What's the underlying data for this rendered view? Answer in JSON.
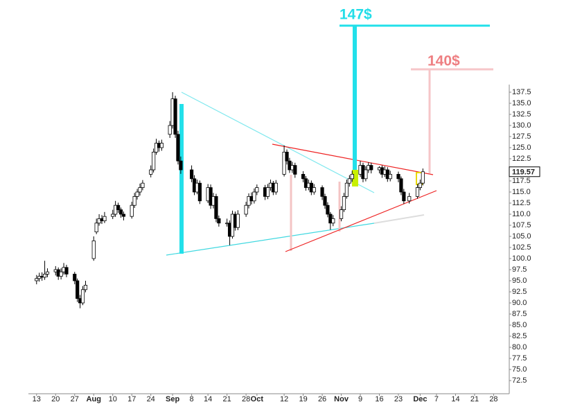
{
  "chart_data": {
    "type": "candlestick",
    "annotations": {
      "target_high": "147$",
      "target_low": "140$"
    },
    "x": [
      0,
      1,
      2,
      3,
      4,
      7,
      8,
      9,
      10,
      11,
      14,
      15,
      16,
      17,
      18,
      21,
      22,
      23,
      24,
      25,
      28,
      29,
      30,
      31,
      32,
      35,
      36,
      37,
      38,
      39,
      42,
      43,
      44,
      45,
      46,
      49,
      50,
      51,
      52,
      53,
      57,
      58,
      59,
      60,
      63,
      64,
      65,
      66,
      67,
      70,
      71,
      72,
      73,
      74,
      77,
      78,
      79,
      80,
      81,
      84,
      85,
      86,
      87,
      88,
      91,
      92,
      93,
      94,
      95,
      98,
      99,
      100,
      101,
      102,
      105,
      106,
      107,
      108,
      109,
      112,
      113,
      114,
      115,
      116,
      119,
      120,
      121,
      122,
      123,
      126,
      127,
      128,
      129,
      130,
      133,
      134,
      135,
      137,
      140,
      141,
      142
    ],
    "open": [
      95,
      95.5,
      96,
      95.8,
      96.5,
      97,
      97.5,
      96,
      97,
      98,
      96.5,
      95,
      91,
      90,
      93,
      100,
      106,
      108,
      109,
      108.5,
      109.5,
      110,
      112,
      111,
      110,
      109.5,
      112,
      114,
      115,
      116,
      119,
      120,
      124,
      126,
      125,
      128,
      130,
      136,
      128,
      122,
      120,
      118,
      115,
      117,
      113,
      116,
      112,
      114,
      109,
      108,
      108,
      105,
      110,
      107,
      110,
      112,
      114,
      113,
      115,
      116,
      114,
      116,
      117,
      115,
      119,
      124,
      122,
      120,
      121,
      119,
      118,
      116,
      117,
      115,
      116,
      114,
      112,
      110,
      108,
      109,
      111,
      114,
      117,
      118,
      119,
      121,
      118,
      120,
      121,
      120,
      120.5,
      119,
      120,
      118,
      119,
      118,
      115,
      113,
      114,
      116,
      117
    ],
    "high": [
      96.3,
      96.8,
      96.9,
      99.5,
      97.8,
      98.3,
      98,
      97.8,
      99,
      98.6,
      97,
      95.5,
      91.8,
      93.8,
      95,
      105,
      109,
      110,
      109.8,
      110.5,
      111,
      113,
      112.6,
      111.5,
      110.6,
      112.8,
      114.8,
      115.7,
      116.9,
      117.7,
      121,
      124.8,
      127,
      126.6,
      126.8,
      131,
      137.5,
      136.7,
      128.8,
      123,
      121,
      118.8,
      117.8,
      117.6,
      116.8,
      116.7,
      114.8,
      114.6,
      109.7,
      109,
      108.6,
      110.8,
      110.6,
      110.9,
      112.8,
      114.7,
      114.9,
      115.8,
      116.7,
      116.6,
      116.8,
      117.8,
      117.5,
      117.7,
      125.5,
      124.6,
      122.7,
      121.8,
      121.6,
      119.7,
      118.6,
      117.8,
      117.6,
      116.8,
      116.5,
      114.6,
      112.7,
      110.5,
      109.8,
      111.8,
      114.8,
      117.8,
      118.8,
      119.8,
      122,
      121.6,
      120.8,
      121.7,
      121.6,
      120.8,
      121,
      120.8,
      120.6,
      119.8,
      119.6,
      118.5,
      115.7,
      114.8,
      116.8,
      117.8,
      120.3
    ],
    "low": [
      94.2,
      94.8,
      95,
      95.2,
      95.8,
      96.2,
      95.2,
      95.3,
      96.4,
      95.8,
      94.2,
      90.2,
      88.8,
      89.5,
      92.4,
      99.5,
      105.5,
      107.4,
      107.8,
      108,
      108.9,
      109.4,
      110.3,
      109.2,
      108.6,
      109,
      111.4,
      113.3,
      114.2,
      115.4,
      118.3,
      119.4,
      123.4,
      124.1,
      124.3,
      127.2,
      129.3,
      127.2,
      121.2,
      119.1,
      117.2,
      114.3,
      114.5,
      112.3,
      112.5,
      111.2,
      111.3,
      108.2,
      107.2,
      107.2,
      103,
      104.5,
      106.3,
      106.4,
      109.4,
      111.3,
      112.2,
      112.4,
      114.3,
      113.2,
      113.4,
      115.3,
      114.3,
      114.4,
      118.5,
      121.2,
      119.3,
      119.3,
      118.2,
      117.2,
      115.3,
      115.4,
      114.3,
      114.4,
      113.2,
      111.2,
      109.3,
      106.5,
      107.3,
      108.4,
      110.5,
      113.5,
      116.2,
      117.3,
      118.4,
      117.2,
      117.4,
      119.3,
      119.2,
      119.2,
      118.2,
      118.4,
      117.3,
      117.4,
      117.2,
      114.3,
      112.3,
      112.4,
      113.5,
      115.4,
      116.5
    ],
    "close": [
      95.5,
      96,
      95.8,
      96.5,
      97,
      97.5,
      96,
      97,
      98,
      96.5,
      95,
      91,
      90,
      93,
      94,
      104,
      108,
      109,
      108.5,
      109.5,
      110,
      112,
      111,
      110,
      109.5,
      112,
      114,
      115,
      116,
      117,
      120,
      124,
      126,
      125,
      126,
      130,
      136,
      128,
      122,
      120,
      118,
      115,
      117,
      113,
      116,
      112,
      114,
      109,
      108,
      108,
      105,
      110,
      107,
      110,
      112,
      114,
      113,
      115,
      116,
      114,
      116,
      117,
      115,
      117,
      124,
      122,
      120,
      121,
      119,
      118,
      116,
      117,
      115,
      116,
      114,
      112,
      110,
      108,
      109,
      111,
      114,
      117,
      118,
      119,
      121,
      118,
      120,
      121,
      120,
      120.5,
      119,
      120,
      118,
      119,
      118,
      115,
      113,
      114,
      116,
      117,
      119.57
    ],
    "up_color": "#ffffff",
    "down_color": "#000000",
    "outline_color": "#000000",
    "xlim": [
      -3,
      174
    ],
    "xticks": [
      {
        "value": 0,
        "label": "13"
      },
      {
        "value": 7,
        "label": "20"
      },
      {
        "value": 14,
        "label": "27"
      },
      {
        "value": 21,
        "label": "Aug"
      },
      {
        "value": 28,
        "label": "10"
      },
      {
        "value": 35,
        "label": "17"
      },
      {
        "value": 42,
        "label": "24"
      },
      {
        "value": 50,
        "label": "Sep"
      },
      {
        "value": 57,
        "label": "8"
      },
      {
        "value": 63,
        "label": "14"
      },
      {
        "value": 70,
        "label": "21"
      },
      {
        "value": 77,
        "label": "28"
      },
      {
        "value": 81,
        "label": "Oct"
      },
      {
        "value": 91,
        "label": "12"
      },
      {
        "value": 98,
        "label": "19"
      },
      {
        "value": 105,
        "label": "26"
      },
      {
        "value": 112,
        "label": "Nov"
      },
      {
        "value": 119,
        "label": "9"
      },
      {
        "value": 126,
        "label": "16"
      },
      {
        "value": 133,
        "label": "23"
      },
      {
        "value": 141,
        "label": "Dec"
      },
      {
        "value": 147,
        "label": "7"
      },
      {
        "value": 154,
        "label": "14"
      },
      {
        "value": 161,
        "label": "21"
      },
      {
        "value": 168,
        "label": "28"
      }
    ],
    "ylim": [
      70,
      140
    ],
    "yticks": [
      72.5,
      {
        "value": 75,
        "label": "75.0"
      },
      77.5,
      {
        "value": 80,
        "label": "80.0"
      },
      82.5,
      {
        "value": 85,
        "label": "85.0"
      },
      87.5,
      {
        "value": 90,
        "label": "90.0"
      },
      92.5,
      {
        "value": 95,
        "label": "95.0"
      },
      97.5,
      {
        "value": 100,
        "label": "100.0"
      },
      102.5,
      {
        "value": 105,
        "label": "105.0"
      },
      107.5,
      {
        "value": 110,
        "label": "110.0"
      },
      112.5,
      {
        "value": 115,
        "label": "115.0"
      },
      117.5,
      {
        "value": 120,
        "label": "120.0"
      },
      122.5,
      {
        "value": 125,
        "label": "125.0"
      },
      127.5,
      {
        "value": 130,
        "label": "130.0"
      },
      132.5,
      {
        "value": 135,
        "label": "135.0"
      },
      137.5
    ]
  }
}
